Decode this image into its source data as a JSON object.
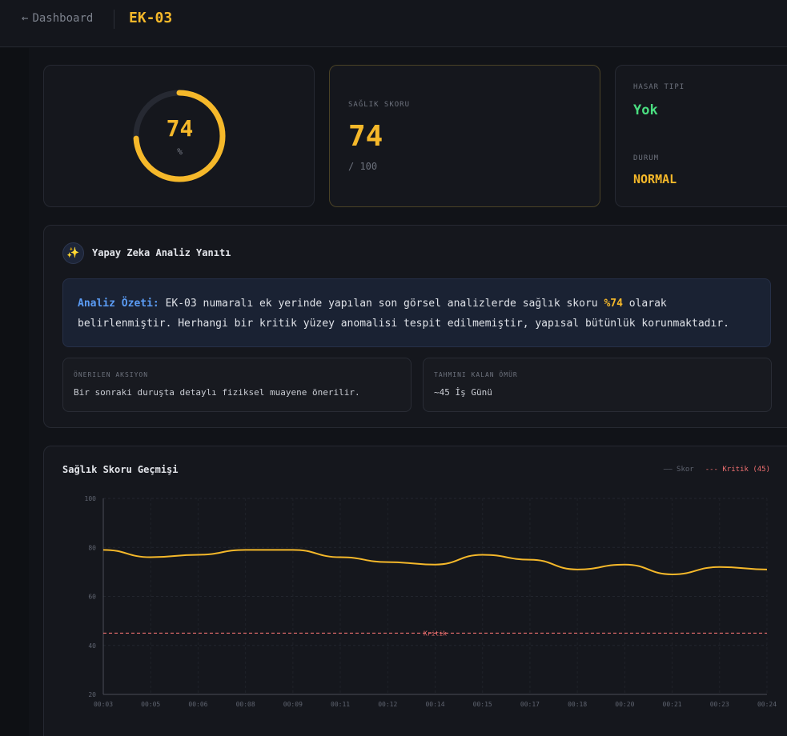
{
  "header": {
    "back_arrow": "←",
    "back_label": "Dashboard",
    "title": "EK-03"
  },
  "gauge": {
    "value": "74",
    "unit": "%",
    "percent": 74
  },
  "score_card": {
    "label": "SAĞLIK SKORU",
    "value": "74",
    "max": "/ 100"
  },
  "damage_card": {
    "type_label": "HASAR TIPI",
    "type_value": "Yok",
    "status_label": "DURUM",
    "status_value": "NORMAL"
  },
  "ai_analysis": {
    "icon": "sparkles-icon",
    "title": "Yapay Zeka Analiz Yanıtı",
    "summary_prefix": "Analiz Özeti:",
    "summary_part1": " EK-03 numaralı ek yerinde yapılan son görsel analizlerde sağlık skoru ",
    "summary_highlight": "%74",
    "summary_part2": " olarak belirlenmiştir. Herhangi bir kritik yüzey anomalisi tespit edilmemiştir, yapısal bütünlük korunmaktadır.",
    "recommended_label": "ÖNERILEN AKSIYON",
    "recommended_value": "Bir sonraki duruşta detaylı fiziksel muayene önerilir.",
    "remaining_label": "TAHMINI KALAN ÖMÜR",
    "remaining_value": "~45 İş Günü"
  },
  "history": {
    "title": "Sağlık Skoru Geçmişi",
    "legend_score": "—— Skor",
    "legend_critical": "--- Kritik (45)"
  },
  "colors": {
    "accent": "#f5b82a",
    "ok": "#4ade80",
    "critical": "#f07070",
    "info": "#5b9cf5"
  },
  "chart_data": {
    "type": "line",
    "title": "Sağlık Skoru Geçmişi",
    "categories": [
      "00:03",
      "00:05",
      "00:06",
      "00:08",
      "00:09",
      "00:11",
      "00:12",
      "00:14",
      "00:15",
      "00:17",
      "00:18",
      "00:20",
      "00:21",
      "00:23",
      "00:24"
    ],
    "series": [
      {
        "name": "Skor",
        "values": [
          79,
          76,
          77,
          79,
          79,
          76,
          74,
          73,
          77,
          75,
          71,
          73,
          69,
          72,
          71
        ]
      }
    ],
    "threshold": {
      "name": "Kritik (45)",
      "value": 45,
      "label": "Kritik"
    },
    "ylim": [
      20,
      100
    ],
    "yticks": [
      20,
      40,
      60,
      80,
      100
    ],
    "grid": true,
    "legend": "top-right"
  }
}
